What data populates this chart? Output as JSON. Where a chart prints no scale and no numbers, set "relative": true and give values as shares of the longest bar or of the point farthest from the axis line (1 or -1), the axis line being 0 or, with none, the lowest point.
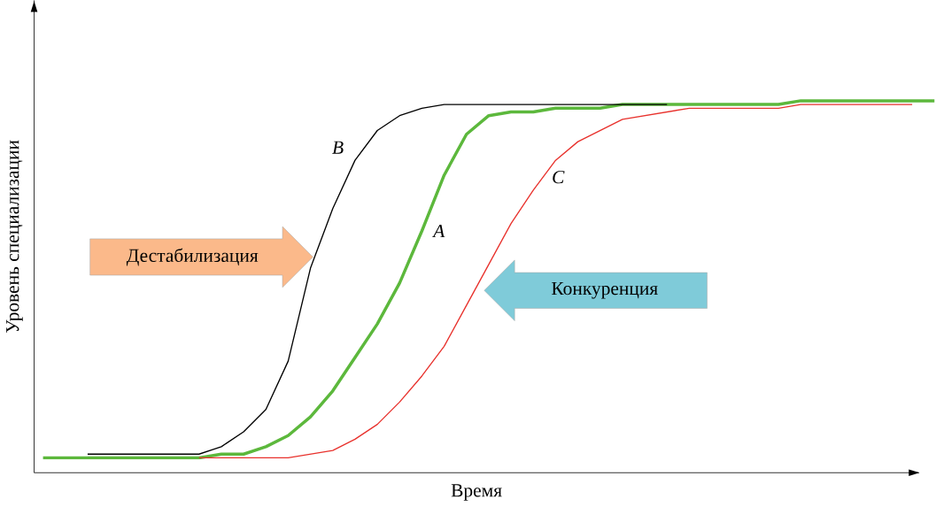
{
  "chart_data": {
    "type": "line",
    "relative": true,
    "xlabel": "Время",
    "ylabel": "Уровень специализации",
    "categories": [
      null,
      null,
      null,
      null,
      null,
      null,
      null,
      null,
      null,
      null,
      null,
      null,
      null,
      null,
      null,
      null,
      null,
      null,
      null,
      null,
      null,
      null,
      null,
      null,
      null,
      null,
      null,
      null,
      null,
      null,
      null,
      null,
      null,
      null,
      null,
      null,
      null,
      null,
      null,
      null,
      null
    ],
    "series": [
      {
        "name": "A",
        "color": "#5cb83c",
        "values": [
          0.04,
          0.04,
          0.04,
          0.04,
          0.04,
          0.04,
          0.04,
          0.04,
          0.05,
          0.05,
          0.07,
          0.1,
          0.15,
          0.22,
          0.31,
          0.4,
          0.51,
          0.65,
          0.8,
          0.91,
          0.96,
          0.97,
          0.97,
          0.98,
          0.98,
          0.98,
          0.99,
          0.99,
          0.99,
          0.99,
          0.99,
          0.99,
          0.99,
          0.99,
          1.0,
          1.0,
          1.0,
          1.0,
          1.0,
          1.0,
          1.0
        ]
      },
      {
        "name": "B",
        "color": "#000000",
        "values": [
          null,
          null,
          0.05,
          0.05,
          0.05,
          0.05,
          0.05,
          0.05,
          0.07,
          0.11,
          0.17,
          0.3,
          0.55,
          0.71,
          0.84,
          0.92,
          0.96,
          0.98,
          0.99,
          0.99,
          0.99,
          0.99,
          0.99,
          0.99,
          0.99,
          0.99,
          0.99,
          0.99,
          0.99,
          null,
          null,
          null,
          null,
          null,
          null,
          null,
          null,
          null,
          null,
          null,
          null
        ]
      },
      {
        "name": "C",
        "color": "#e8312c",
        "values": [
          null,
          null,
          null,
          null,
          null,
          null,
          null,
          0.04,
          0.04,
          0.04,
          0.04,
          0.04,
          0.05,
          0.06,
          0.09,
          0.13,
          0.19,
          0.26,
          0.34,
          0.45,
          0.56,
          0.67,
          0.76,
          0.84,
          0.89,
          0.92,
          0.95,
          0.96,
          0.97,
          0.98,
          0.98,
          0.98,
          0.98,
          0.98,
          0.99,
          0.99,
          0.99,
          0.99,
          0.99,
          0.99,
          null
        ]
      }
    ],
    "annotations": [
      "Дестабилизация",
      "Конкуренция"
    ],
    "marker": "none",
    "line_style": "solid"
  }
}
